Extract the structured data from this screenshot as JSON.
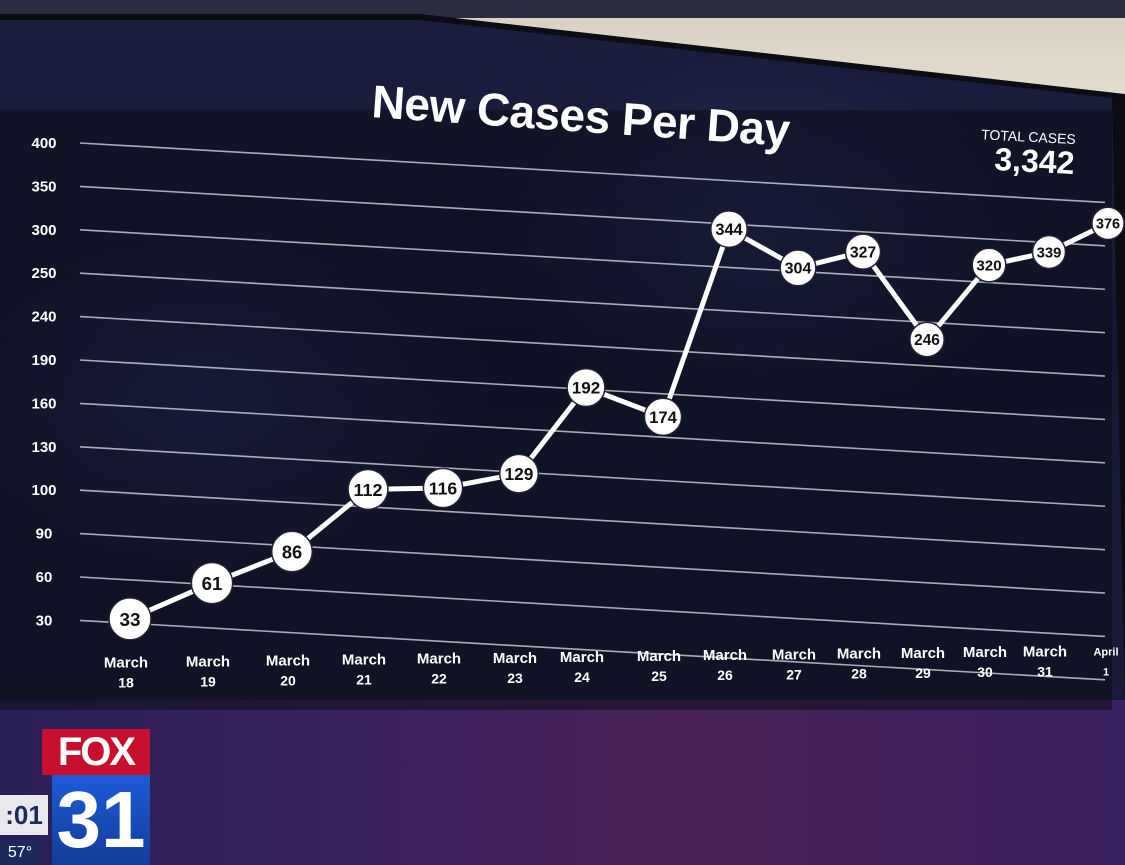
{
  "chart_data": {
    "type": "line",
    "title": "New Cases Per Day",
    "xlabel": "",
    "ylabel": "",
    "categories": [
      [
        "March",
        "18"
      ],
      [
        "March",
        "19"
      ],
      [
        "March",
        "20"
      ],
      [
        "March",
        "21"
      ],
      [
        "March",
        "22"
      ],
      [
        "March",
        "23"
      ],
      [
        "March",
        "24"
      ],
      [
        "March",
        "25"
      ],
      [
        "March",
        "26"
      ],
      [
        "March",
        "27"
      ],
      [
        "March",
        "28"
      ],
      [
        "March",
        "29"
      ],
      [
        "March",
        "30"
      ],
      [
        "March",
        "31"
      ],
      [
        "April",
        "1"
      ]
    ],
    "y_ticks": [
      "30",
      "60",
      "90",
      "100",
      "130",
      "160",
      "190",
      "240",
      "250",
      "300",
      "350",
      "400"
    ],
    "series": [
      {
        "values": [
          33,
          61,
          86,
          112,
          116,
          129,
          192,
          174,
          344,
          304,
          327,
          246,
          320,
          339,
          376
        ]
      }
    ],
    "grid": true,
    "legend": "none"
  },
  "total_cases": {
    "label": "TOTAL CASES",
    "value": "3,342"
  },
  "station": {
    "brand": "FOX",
    "channel": "31"
  },
  "ticker": {
    "time": ":01",
    "temp": "57°"
  },
  "colors": {
    "background": "#151835",
    "line": "#ffffff",
    "marker_fill": "#ffffff",
    "marker_text": "#111111",
    "grid": "#c8c8d2",
    "brand_red": "#c8102e",
    "brand_blue": "#1d5bd8"
  }
}
